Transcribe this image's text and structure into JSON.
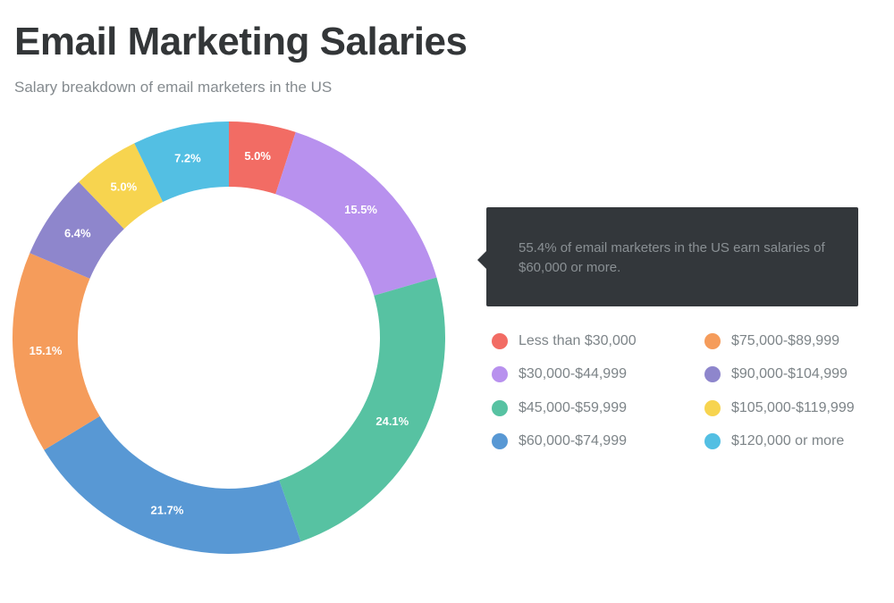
{
  "chart_data": {
    "type": "pie",
    "variant": "donut",
    "title": "Email Marketing Salaries",
    "subtitle": "Salary breakdown of email marketers in the US",
    "categories": [
      "Less than $30,000",
      "$30,000-$44,999",
      "$45,000-$59,999",
      "$60,000-$74,999",
      "$75,000-$89,999",
      "$90,000-$104,999",
      "$105,000-$119,999",
      "$120,000 or more"
    ],
    "values": [
      5.0,
      15.5,
      24.1,
      21.7,
      15.1,
      6.4,
      5.0,
      7.2
    ],
    "labels": [
      "5.0%",
      "15.5%",
      "24.1%",
      "21.7%",
      "15.1%",
      "6.4%",
      "5.0%",
      "7.2%"
    ],
    "colors": [
      "#f26c64",
      "#b891ee",
      "#57c2a2",
      "#5898d4",
      "#f59c5b",
      "#8e86cc",
      "#f7d44f",
      "#53bfe3"
    ],
    "unit": "%",
    "legend_position": "right",
    "annotation": "55.4% of email marketers in the US earn salaries of $60,000 or more."
  }
}
